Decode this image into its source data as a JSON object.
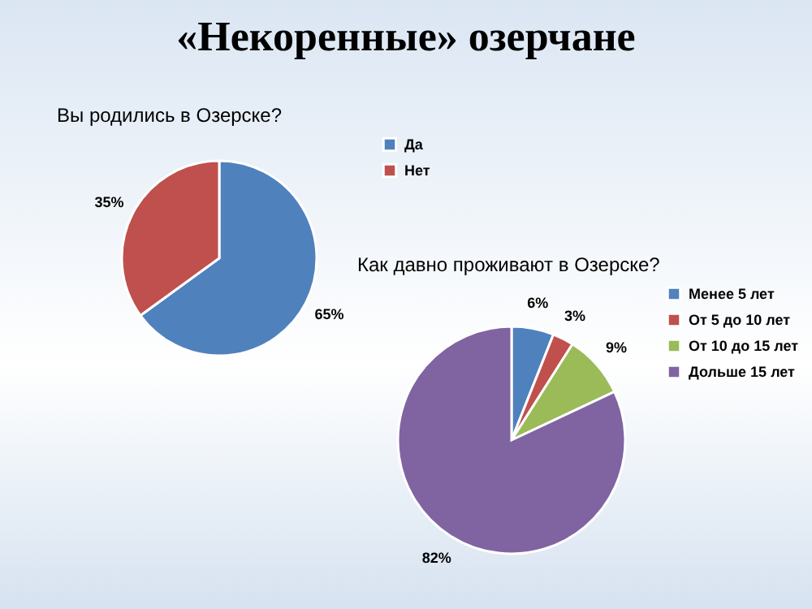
{
  "chart_data": [
    {
      "type": "pie",
      "title": "«Некоренные» озерчане",
      "subtitle": "Вы родились в Озерске?",
      "categories": [
        "Да",
        "Нет"
      ],
      "values": [
        65,
        35
      ],
      "colors": [
        "#4f81bd",
        "#c0504d"
      ],
      "value_labels": [
        "65%",
        "35%"
      ],
      "legend": "right"
    },
    {
      "type": "pie",
      "title": "Как давно проживают в Озерске?",
      "categories": [
        "Менее 5 лет",
        "От 5 до 10 лет",
        "От 10 до 15 лет",
        "Дольше 15 лет"
      ],
      "values": [
        6,
        3,
        9,
        82
      ],
      "colors": [
        "#4f81bd",
        "#c0504d",
        "#9bbb59",
        "#8064a2"
      ],
      "value_labels": [
        "6%",
        "3%",
        "9%",
        "82%"
      ],
      "legend": "right"
    }
  ]
}
